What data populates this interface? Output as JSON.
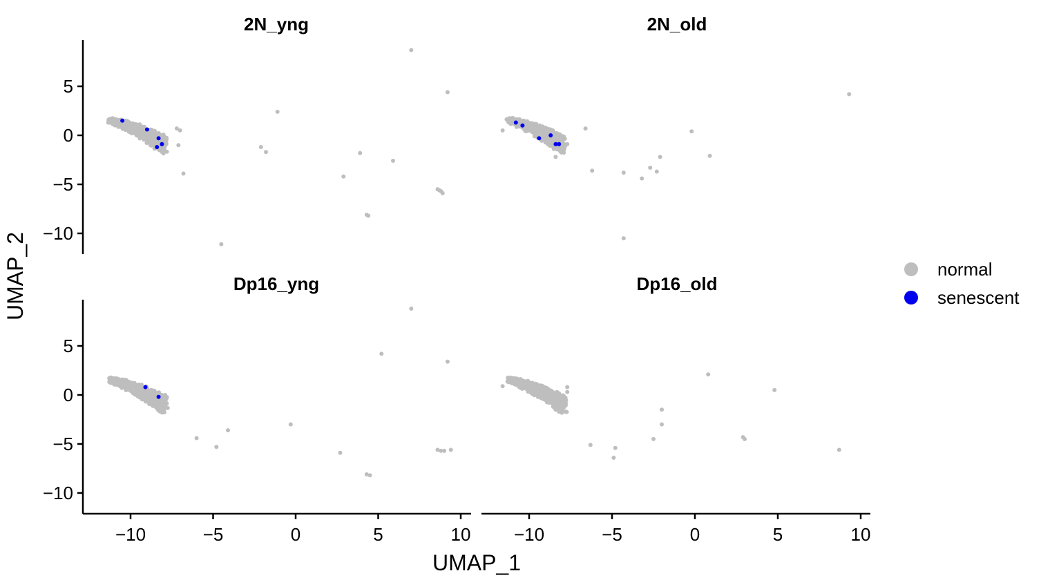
{
  "chart_data": {
    "type": "scatter",
    "xlabel": "UMAP_1",
    "ylabel": "UMAP_2",
    "xlim": [
      -12.5,
      10.5
    ],
    "ylim": [
      -12,
      9.5
    ],
    "x_ticks": [
      -10,
      -5,
      0,
      5,
      10
    ],
    "y_ticks": [
      5,
      0,
      -5,
      -10
    ],
    "tick_label_text": {
      "-10": "−10",
      "-5": "−5",
      "0": "0",
      "5": "5",
      "10": "10"
    },
    "grid": false,
    "legend_position": "right",
    "colors": {
      "normal": "#bebebe",
      "senescent": "#0000ee"
    },
    "legend": [
      {
        "name": "normal",
        "color": "#bebebe"
      },
      {
        "name": "senescent",
        "color": "#0000ee"
      }
    ],
    "panels": [
      {
        "title": "2N_yng",
        "normal": [
          [
            7.0,
            8.7
          ],
          [
            9.2,
            4.4
          ],
          [
            -1.1,
            2.4
          ],
          [
            -7.2,
            0.7
          ],
          [
            -7.0,
            0.5
          ],
          [
            -7.1,
            -1.0
          ],
          [
            -6.8,
            -3.9
          ],
          [
            -2.1,
            -1.2
          ],
          [
            -1.8,
            -1.7
          ],
          [
            3.9,
            -1.8
          ],
          [
            5.9,
            -2.6
          ],
          [
            2.9,
            -4.2
          ],
          [
            8.6,
            -5.5
          ],
          [
            8.8,
            -5.7
          ],
          [
            8.9,
            -5.9
          ],
          [
            8.7,
            -5.6
          ],
          [
            4.3,
            -8.1
          ],
          [
            4.4,
            -8.2
          ],
          [
            -4.5,
            -11.1
          ]
        ],
        "cluster": {
          "dense": true
        },
        "senescent": [
          [
            -10.5,
            1.5
          ],
          [
            -9.0,
            0.6
          ],
          [
            -8.3,
            -0.3
          ],
          [
            -8.1,
            -0.9
          ],
          [
            -8.4,
            -1.2
          ]
        ]
      },
      {
        "title": "2N_old",
        "normal": [
          [
            9.3,
            4.2
          ],
          [
            -0.2,
            0.4
          ],
          [
            -6.6,
            0.7
          ],
          [
            -11.6,
            0.5
          ],
          [
            -6.2,
            -3.6
          ],
          [
            -4.3,
            -3.8
          ],
          [
            -3.2,
            -4.4
          ],
          [
            -2.7,
            -3.3
          ],
          [
            -2.3,
            -3.7
          ],
          [
            -2.1,
            -2.2
          ],
          [
            0.9,
            -2.1
          ],
          [
            -4.3,
            -10.5
          ],
          [
            -7.7,
            -0.9
          ],
          [
            -8.4,
            -2.2
          ]
        ],
        "cluster": {
          "dense": true
        },
        "senescent": [
          [
            -10.8,
            1.3
          ],
          [
            -10.4,
            1.0
          ],
          [
            -8.7,
            0.0
          ],
          [
            -9.4,
            -0.3
          ],
          [
            -8.4,
            -0.9
          ],
          [
            -8.2,
            -0.9
          ]
        ]
      },
      {
        "title": "Dp16_yng",
        "normal": [
          [
            7.0,
            8.8
          ],
          [
            5.2,
            4.2
          ],
          [
            9.2,
            3.4
          ],
          [
            -0.3,
            -3.0
          ],
          [
            -6.0,
            -4.4
          ],
          [
            -4.1,
            -3.6
          ],
          [
            -4.8,
            -5.3
          ],
          [
            2.7,
            -5.9
          ],
          [
            8.6,
            -5.6
          ],
          [
            8.8,
            -5.7
          ],
          [
            9.0,
            -5.7
          ],
          [
            9.4,
            -5.6
          ],
          [
            4.3,
            -8.1
          ],
          [
            4.5,
            -8.2
          ],
          [
            -7.9,
            0.0
          ],
          [
            -7.9,
            -0.9
          ]
        ],
        "cluster": {
          "dense": true
        },
        "senescent": [
          [
            -9.1,
            0.8
          ],
          [
            -8.3,
            -0.2
          ]
        ]
      },
      {
        "title": "Dp16_old",
        "normal": [
          [
            0.8,
            2.1
          ],
          [
            4.8,
            0.5
          ],
          [
            -11.6,
            0.9
          ],
          [
            -2.0,
            -1.5
          ],
          [
            -2.0,
            -3.0
          ],
          [
            -2.5,
            -4.5
          ],
          [
            2.9,
            -4.3
          ],
          [
            3.0,
            -4.5
          ],
          [
            -6.3,
            -5.1
          ],
          [
            -4.8,
            -5.4
          ],
          [
            -4.9,
            -6.4
          ],
          [
            8.7,
            -5.6
          ],
          [
            -7.7,
            0.8
          ],
          [
            -7.7,
            0.3
          ]
        ],
        "cluster": {
          "dense": true
        },
        "senescent": []
      }
    ]
  }
}
